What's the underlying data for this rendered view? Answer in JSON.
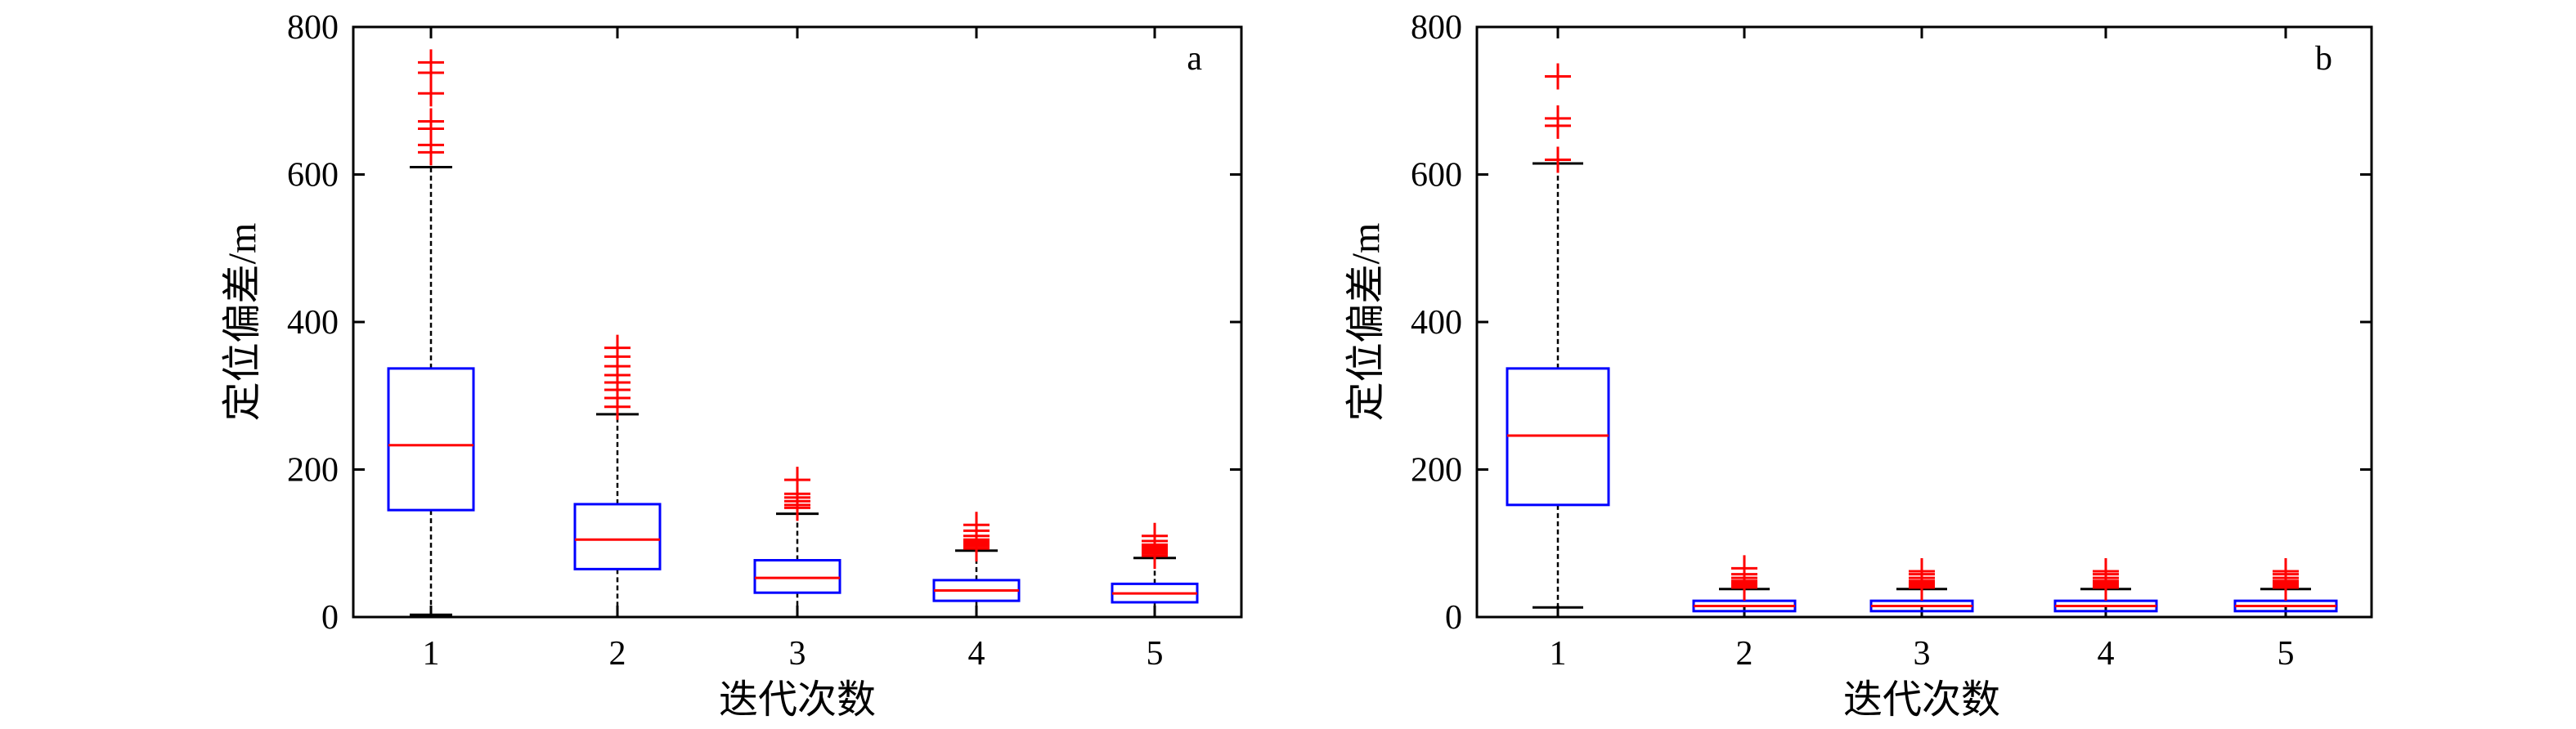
{
  "chart_data": [
    {
      "type": "box",
      "panel_label": "a",
      "xlabel": "迭代次数",
      "ylabel": "定位偏差/m",
      "ylim": [
        0,
        800
      ],
      "yticks": [
        "0",
        "200",
        "400",
        "600",
        "800"
      ],
      "categories": [
        "1",
        "2",
        "3",
        "4",
        "5"
      ],
      "boxes": [
        {
          "whisker_low": 3,
          "q1": 145,
          "median": 233,
          "q3": 337,
          "whisker_high": 610,
          "outliers": [
            630,
            640,
            662,
            672,
            710,
            738,
            752
          ]
        },
        {
          "whisker_low": 0,
          "q1": 65,
          "median": 105,
          "q3": 153,
          "whisker_high": 275,
          "outliers": [
            285,
            297,
            308,
            318,
            328,
            340,
            353,
            365
          ]
        },
        {
          "whisker_low": 0,
          "q1": 33,
          "median": 53,
          "q3": 77,
          "whisker_high": 140,
          "outliers": [
            148,
            152,
            157,
            162,
            167,
            186
          ]
        },
        {
          "whisker_low": 0,
          "q1": 22,
          "median": 36,
          "q3": 50,
          "whisker_high": 90,
          "outliers": [
            93,
            96,
            99,
            102,
            105,
            110,
            117,
            125
          ]
        },
        {
          "whisker_low": 0,
          "q1": 20,
          "median": 32,
          "q3": 45,
          "whisker_high": 80,
          "outliers": [
            83,
            86,
            89,
            92,
            95,
            98,
            103,
            110
          ]
        }
      ]
    },
    {
      "type": "box",
      "panel_label": "b",
      "xlabel": "迭代次数",
      "ylabel": "定位偏差/m",
      "ylim": [
        0,
        800
      ],
      "yticks": [
        "0",
        "200",
        "400",
        "600",
        "800"
      ],
      "categories": [
        "1",
        "2",
        "3",
        "4",
        "5"
      ],
      "boxes": [
        {
          "whisker_low": 13,
          "q1": 152,
          "median": 246,
          "q3": 337,
          "whisker_high": 615,
          "outliers": [
            620,
            666,
            676,
            733
          ]
        },
        {
          "whisker_low": 0,
          "q1": 8,
          "median": 15,
          "q3": 22,
          "whisker_high": 38,
          "outliers": [
            40,
            43,
            46,
            49,
            53,
            58,
            66
          ]
        },
        {
          "whisker_low": 0,
          "q1": 8,
          "median": 15,
          "q3": 22,
          "whisker_high": 38,
          "outliers": [
            40,
            43,
            46,
            49,
            53,
            58,
            62
          ]
        },
        {
          "whisker_low": 0,
          "q1": 8,
          "median": 15,
          "q3": 22,
          "whisker_high": 38,
          "outliers": [
            40,
            43,
            46,
            49,
            53,
            58,
            62
          ]
        },
        {
          "whisker_low": 0,
          "q1": 8,
          "median": 15,
          "q3": 22,
          "whisker_high": 38,
          "outliers": [
            40,
            43,
            46,
            49,
            53,
            58,
            62
          ]
        }
      ]
    }
  ],
  "colors": {
    "box": "#0000ff",
    "median": "#ff0000",
    "outlier": "#ff0000",
    "whisker": "#000000"
  }
}
